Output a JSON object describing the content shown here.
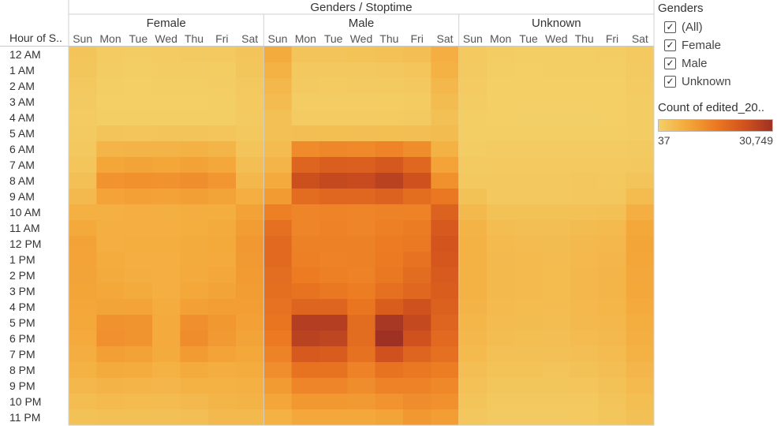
{
  "header": {
    "title": "Genders / Stoptime",
    "row_field_label": "Hour of S.."
  },
  "sidebar": {
    "title": "Genders",
    "filters": [
      {
        "label": "(All)",
        "checked": true
      },
      {
        "label": "Female",
        "checked": true
      },
      {
        "label": "Male",
        "checked": true
      },
      {
        "label": "Unknown",
        "checked": true
      }
    ],
    "color_legend": {
      "title": "Count of edited_20..",
      "min_label": "37",
      "max_label": "30,749",
      "colors": [
        "#f3d067",
        "#f4a83a",
        "#ec7a22",
        "#d2531d",
        "#9f3124"
      ]
    }
  },
  "chart_data": {
    "type": "heatmap",
    "title": "Genders / Stoptime",
    "row_label": "Hour of S..",
    "groups": [
      "Female",
      "Male",
      "Unknown"
    ],
    "days": [
      "Sun",
      "Mon",
      "Tue",
      "Wed",
      "Thu",
      "Fri",
      "Sat"
    ],
    "hours": [
      "12 AM",
      "1 AM",
      "2 AM",
      "3 AM",
      "4 AM",
      "5 AM",
      "6 AM",
      "7 AM",
      "8 AM",
      "9 AM",
      "10 AM",
      "11 AM",
      "12 PM",
      "1 PM",
      "2 PM",
      "3 PM",
      "4 PM",
      "5 PM",
      "6 PM",
      "7 PM",
      "8 PM",
      "9 PM",
      "10 PM",
      "11 PM"
    ],
    "range": [
      37,
      30749
    ],
    "values": {
      "Female": [
        [
          1300,
          400,
          300,
          400,
          500,
          600,
          1200
        ],
        [
          1000,
          250,
          200,
          250,
          300,
          350,
          1000
        ],
        [
          700,
          150,
          120,
          150,
          180,
          220,
          800
        ],
        [
          500,
          100,
          90,
          100,
          120,
          150,
          600
        ],
        [
          400,
          150,
          130,
          150,
          170,
          200,
          500
        ],
        [
          500,
          1200,
          1100,
          1200,
          1200,
          1100,
          700
        ],
        [
          700,
          3500,
          3700,
          3600,
          3800,
          3400,
          1200
        ],
        [
          1100,
          5800,
          6000,
          5800,
          6300,
          5600,
          2000
        ],
        [
          1800,
          8500,
          9000,
          8800,
          9600,
          8200,
          3000
        ],
        [
          2700,
          6200,
          6500,
          6300,
          6800,
          6000,
          4500
        ],
        [
          4200,
          4200,
          4400,
          4300,
          4600,
          4700,
          6300
        ],
        [
          5300,
          4300,
          4500,
          4400,
          4700,
          5000,
          7300
        ],
        [
          6300,
          4500,
          4700,
          4700,
          5000,
          5300,
          7900
        ],
        [
          6200,
          4800,
          4400,
          4500,
          5000,
          5200,
          7800
        ],
        [
          6000,
          5000,
          4600,
          4400,
          5200,
          5600,
          7500
        ],
        [
          5900,
          5400,
          5000,
          4500,
          5500,
          6000,
          7200
        ],
        [
          5700,
          6000,
          6200,
          4800,
          6500,
          7000,
          7000
        ],
        [
          5500,
          8700,
          8600,
          5200,
          9400,
          8000,
          6600
        ],
        [
          5100,
          9200,
          8600,
          5200,
          9800,
          7800,
          6000
        ],
        [
          4600,
          6800,
          6400,
          5000,
          7500,
          6200,
          5400
        ],
        [
          3800,
          5000,
          4800,
          3800,
          5000,
          4600,
          4800
        ],
        [
          3000,
          3600,
          3500,
          3200,
          3800,
          4000,
          4200
        ],
        [
          2200,
          2600,
          2500,
          2400,
          2700,
          3400,
          3600
        ],
        [
          1500,
          1800,
          1700,
          1800,
          1900,
          2700,
          2800
        ]
      ],
      "Male": [
        [
          5000,
          1300,
          1200,
          1400,
          1600,
          1900,
          4500
        ],
        [
          4000,
          800,
          700,
          800,
          900,
          1100,
          3800
        ],
        [
          3000,
          500,
          450,
          500,
          550,
          700,
          3000
        ],
        [
          2400,
          300,
          300,
          300,
          350,
          450,
          2300
        ],
        [
          1800,
          400,
          400,
          400,
          450,
          500,
          1800
        ],
        [
          1800,
          2000,
          2100,
          2000,
          2100,
          2000,
          2300
        ],
        [
          2400,
          10000,
          10700,
          10400,
          11200,
          9800,
          4000
        ],
        [
          3500,
          17500,
          18800,
          18500,
          20400,
          17000,
          6200
        ],
        [
          5200,
          22500,
          24000,
          23500,
          26000,
          22000,
          9000
        ],
        [
          7500,
          16000,
          17000,
          17000,
          18000,
          15500,
          13500
        ],
        [
          12000,
          11000,
          11300,
          11000,
          11600,
          11500,
          18000
        ],
        [
          15000,
          11000,
          11500,
          11000,
          12000,
          12600,
          20000
        ],
        [
          16500,
          11800,
          11800,
          11700,
          12700,
          13300,
          21000
        ],
        [
          16300,
          12000,
          11600,
          11800,
          13000,
          14600,
          20500
        ],
        [
          15800,
          12800,
          12000,
          11600,
          13500,
          16000,
          19800
        ],
        [
          15200,
          14500,
          13500,
          12500,
          15000,
          17000,
          19000
        ],
        [
          14600,
          17500,
          17500,
          14000,
          19000,
          22000,
          18400
        ],
        [
          14000,
          27000,
          27000,
          16000,
          29000,
          24000,
          17500
        ],
        [
          13000,
          26000,
          25000,
          16000,
          30749,
          22000,
          16500
        ],
        [
          11500,
          20000,
          19500,
          14800,
          22000,
          17500,
          15000
        ],
        [
          9500,
          14500,
          14500,
          11500,
          14500,
          13500,
          12500
        ],
        [
          7500,
          11000,
          10800,
          9800,
          11500,
          11500,
          10500
        ],
        [
          5800,
          8000,
          8000,
          7800,
          8500,
          9800,
          9000
        ],
        [
          4000,
          5600,
          5600,
          5600,
          6000,
          8000,
          7000
        ]
      ],
      "Unknown": [
        [
          600,
          250,
          200,
          200,
          200,
          250,
          600
        ],
        [
          500,
          150,
          120,
          130,
          130,
          150,
          500
        ],
        [
          400,
          100,
          90,
          90,
          90,
          100,
          400
        ],
        [
          300,
          70,
          60,
          60,
          60,
          80,
          300
        ],
        [
          200,
          60,
          50,
          37,
          50,
          60,
          250
        ],
        [
          200,
          150,
          150,
          140,
          150,
          150,
          250
        ],
        [
          300,
          400,
          400,
          400,
          400,
          400,
          500
        ],
        [
          500,
          600,
          600,
          600,
          600,
          600,
          800
        ],
        [
          800,
          800,
          800,
          800,
          850,
          800,
          1200
        ],
        [
          1500,
          800,
          800,
          800,
          850,
          900,
          2500
        ],
        [
          2800,
          1500,
          1500,
          1500,
          1600,
          1800,
          4500
        ],
        [
          3600,
          2200,
          2000,
          2000,
          2300,
          2600,
          5500
        ],
        [
          4000,
          2600,
          2400,
          2300,
          2700,
          3000,
          5900
        ],
        [
          4000,
          2700,
          2600,
          2400,
          2900,
          3200,
          5800
        ],
        [
          3900,
          2800,
          2600,
          2500,
          3000,
          3400,
          5600
        ],
        [
          3800,
          2800,
          2600,
          2500,
          3000,
          3400,
          5400
        ],
        [
          3600,
          2600,
          2500,
          2400,
          2900,
          3300,
          5100
        ],
        [
          3300,
          2400,
          2300,
          2200,
          2700,
          3000,
          4700
        ],
        [
          3000,
          2200,
          2100,
          2000,
          2400,
          2700,
          4300
        ],
        [
          2600,
          1800,
          1800,
          1700,
          2000,
          2400,
          3800
        ],
        [
          2000,
          1400,
          1400,
          1300,
          1500,
          1900,
          3200
        ],
        [
          1600,
          1000,
          1000,
          1000,
          1100,
          1500,
          2600
        ],
        [
          1200,
          700,
          700,
          700,
          800,
          1200,
          2100
        ],
        [
          900,
          500,
          500,
          500,
          600,
          1000,
          1700
        ]
      ]
    }
  }
}
